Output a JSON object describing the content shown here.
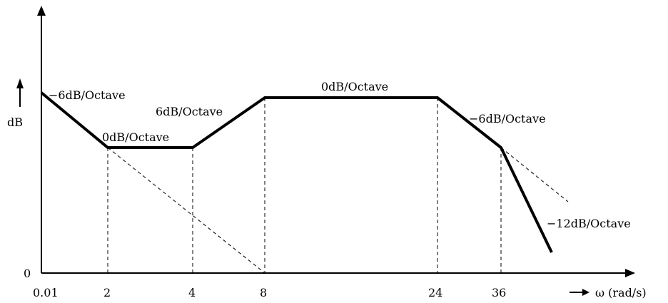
{
  "chart_data": {
    "type": "line",
    "title": "",
    "ylabel": "dB",
    "xlabel": "ω (rad/s)",
    "y_origin_label": "0",
    "x_ticks": [
      "0.01",
      "2",
      "4",
      "8",
      "24",
      "36"
    ],
    "asymptote": {
      "name": "",
      "points": [
        {
          "x": "0.01",
          "level": "high-start"
        },
        {
          "x": "2",
          "level": "low"
        },
        {
          "x": "4",
          "level": "low"
        },
        {
          "x": "8",
          "level": "high"
        },
        {
          "x": "24",
          "level": "high"
        },
        {
          "x": "36",
          "level": "low"
        },
        {
          "x": "beyond",
          "level": "floor"
        }
      ]
    },
    "segments": [
      {
        "from": "0.01",
        "to": "2",
        "slope": -6
      },
      {
        "from": "2",
        "to": "4",
        "slope": 0
      },
      {
        "from": "4",
        "to": "8",
        "slope": 6
      },
      {
        "from": "8",
        "to": "24",
        "slope": 0
      },
      {
        "from": "24",
        "to": "36",
        "slope": -6
      },
      {
        "from": "36",
        "to": "beyond",
        "slope": -12
      }
    ],
    "annotations": [
      "−6dB/Octave",
      "0dB/Octave",
      "6dB/Octave",
      "0dB/Octave",
      "−6dB/Octave",
      "−12dB/Octave"
    ],
    "dashed_extensions": [
      {
        "from": "2",
        "to": "8",
        "meaning": "continuation of −6dB/Octave to 0 dB"
      },
      {
        "from": "36",
        "to": "beyond",
        "meaning": "continuation of −6dB/Octave"
      }
    ],
    "vertical_guides": [
      "2",
      "4",
      "8",
      "24",
      "36"
    ],
    "grid": false,
    "legend": "none"
  }
}
